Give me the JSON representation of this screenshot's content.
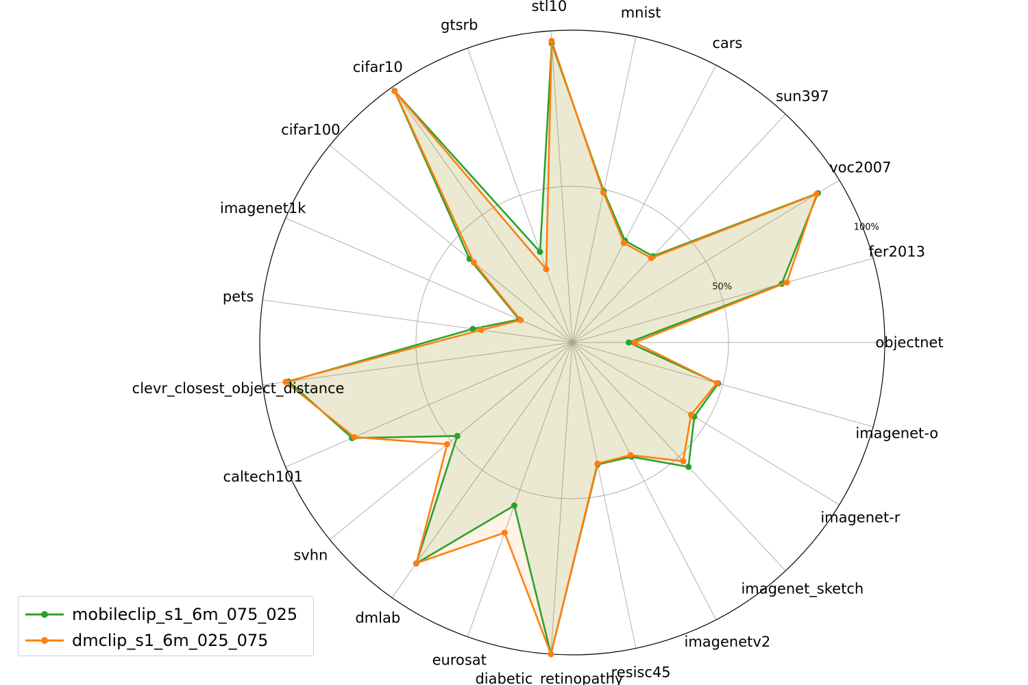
{
  "chart_data": {
    "type": "radar",
    "axes": [
      "objectnet",
      "fer2013",
      "voc2007",
      "sun397",
      "cars",
      "mnist",
      "stl10",
      "gtsrb",
      "cifar10",
      "cifar100",
      "imagenet1k",
      "pets",
      "clevr_closest_object_distance",
      "caltech101",
      "svhn",
      "dmlab",
      "eurosat",
      "diabetic_retinopathy",
      "resisc45",
      "imagenetv2",
      "imagenet_sketch",
      "imagenet-r",
      "imagenet-o"
    ],
    "rlim": [
      0,
      100
    ],
    "radial_ticks": [
      50,
      100
    ],
    "radial_tick_labels": [
      "50%",
      "100%"
    ],
    "grid": true,
    "legend_position": "bottom-left",
    "series": [
      {
        "name": "mobileclip_s1_6m_075_025",
        "color": "#2ca02c",
        "values": [
          18.1,
          69.6,
          92.0,
          37.8,
          36.7,
          49.5,
          96.0,
          30.8,
          98.6,
          42.4,
          18.5,
          32.1,
          91.6,
          76.8,
          47.4,
          86.6,
          55.4,
          100.0,
          39.9,
          41.2,
          54.5,
          45.7,
          48.5
        ]
      },
      {
        "name": "dmclip_s1_6m_025_075",
        "color": "#ff7f0e",
        "values": [
          20.0,
          71.3,
          91.5,
          37.0,
          35.9,
          49.0,
          96.8,
          24.9,
          98.5,
          40.6,
          18.0,
          29.5,
          92.6,
          76.0,
          51.6,
          86.5,
          64.6,
          100.0,
          39.6,
          40.6,
          52.0,
          44.5,
          48.1
        ]
      }
    ]
  }
}
